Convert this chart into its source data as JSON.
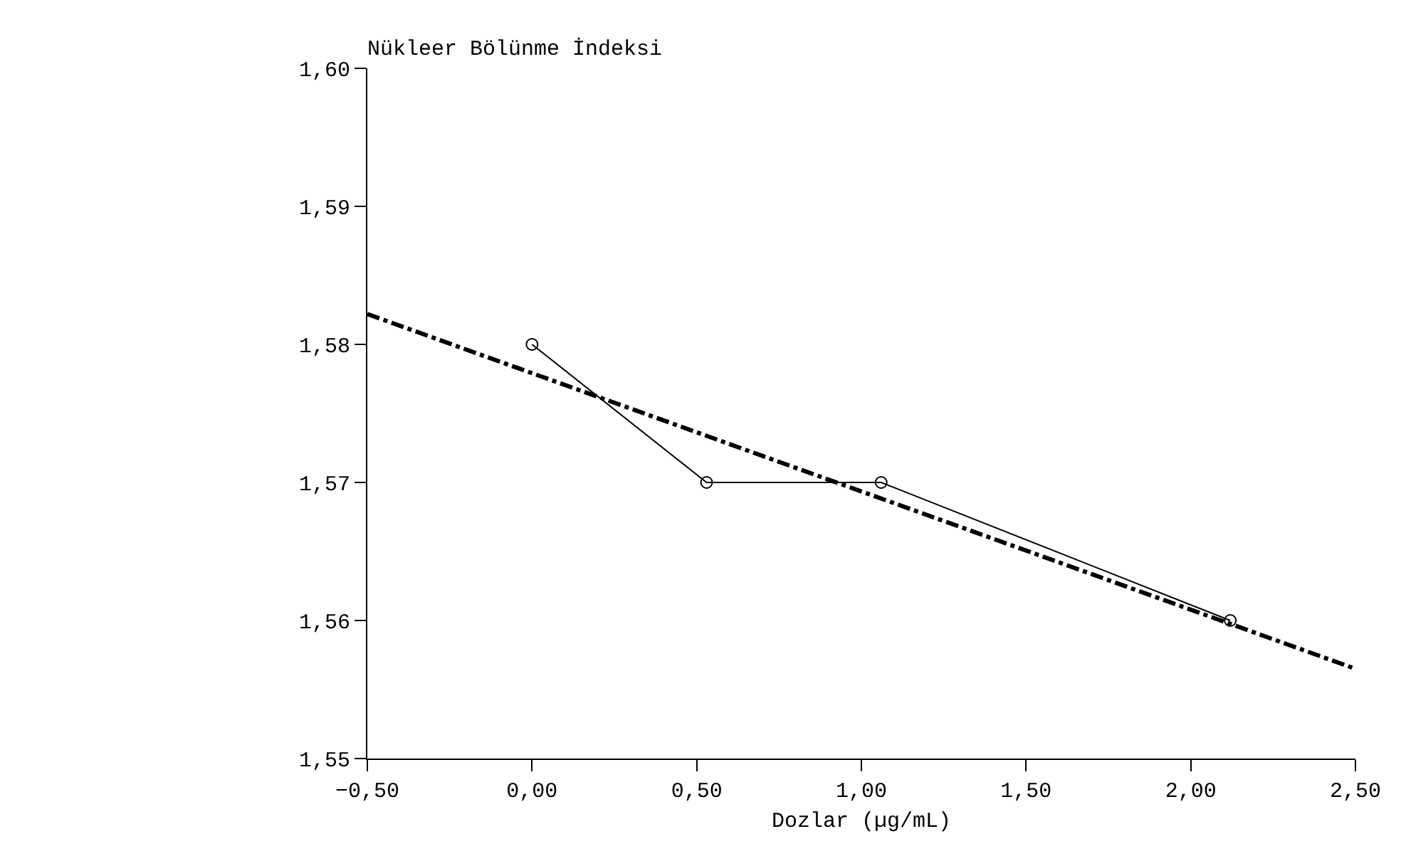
{
  "chart_data": {
    "type": "line",
    "title": "Nükleer Bölünme İndeksi",
    "xlabel": "Dozlar (µg/mL)",
    "series": [
      {
        "color": "#000000",
        "x": [
          0,
          0.53,
          1.06,
          2.12
        ],
        "values": [
          1.58,
          1.57,
          1.57,
          1.56
        ],
        "marker": "circle",
        "line_style": "solid"
      },
      {
        "color": "#000000",
        "x": [
          -0.5,
          2.5
        ],
        "values": [
          1.5822,
          1.5565
        ],
        "marker": "none",
        "line_style": "dashdot"
      }
    ],
    "xlim": [
      -0.5,
      2.5
    ],
    "xticks": [
      {
        "value": -0.5,
        "label": "−0,50"
      },
      {
        "value": 0,
        "label": "0,00"
      },
      {
        "value": 0.5,
        "label": "0,50"
      },
      {
        "value": 1,
        "label": "1,00"
      },
      {
        "value": 1.5,
        "label": "1,50"
      },
      {
        "value": 2,
        "label": "2,00"
      },
      {
        "value": 2.5,
        "label": "2,50"
      }
    ],
    "ylim": [
      1.55,
      1.6
    ],
    "yticks": [
      {
        "value": 1.55,
        "label": "1,55"
      },
      {
        "value": 1.56,
        "label": "1,56"
      },
      {
        "value": 1.57,
        "label": "1,57"
      },
      {
        "value": 1.58,
        "label": "1,58"
      },
      {
        "value": 1.59,
        "label": "1,59"
      },
      {
        "value": 1.6,
        "label": "1,60"
      }
    ],
    "tick_labels": "xy"
  }
}
